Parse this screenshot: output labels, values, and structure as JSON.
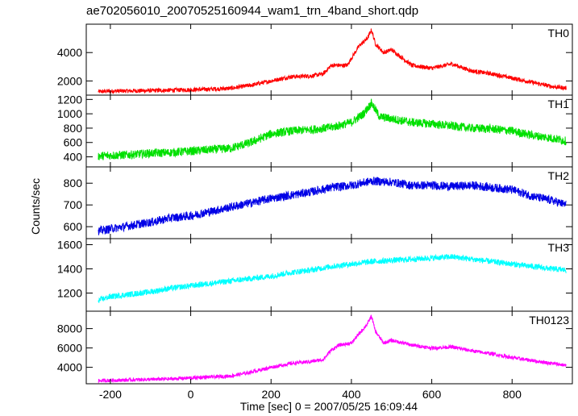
{
  "figure": {
    "title": "ae702056010_20070525160944_wam1_trn_4band_short.qdp",
    "xlabel": "Time [sec] 0 = 2007/05/25 16:09:44",
    "ylabel": "Counts/sec"
  },
  "chart_data": [
    {
      "type": "line",
      "name": "TH0",
      "color": "#ff0000",
      "xlim": [
        -260,
        950
      ],
      "ylim": [
        1000,
        6000
      ],
      "yticks": [
        2000,
        4000
      ],
      "x": [
        -230,
        -200,
        -150,
        -100,
        -50,
        0,
        50,
        100,
        150,
        200,
        250,
        300,
        330,
        350,
        370,
        390,
        400,
        420,
        440,
        450,
        460,
        480,
        500,
        550,
        600,
        650,
        700,
        750,
        800,
        850,
        900,
        935
      ],
      "y": [
        1250,
        1280,
        1300,
        1320,
        1350,
        1380,
        1420,
        1480,
        1700,
        2000,
        2300,
        2350,
        2500,
        3100,
        3100,
        3100,
        3600,
        4500,
        5000,
        5600,
        4600,
        4000,
        4200,
        3100,
        2900,
        3200,
        2700,
        2500,
        2200,
        1900,
        1600,
        1500
      ]
    },
    {
      "type": "line",
      "name": "TH1",
      "color": "#00e000",
      "xlim": [
        -260,
        950
      ],
      "ylim": [
        260,
        1260
      ],
      "yticks": [
        400,
        600,
        800,
        1000,
        1200
      ],
      "x": [
        -230,
        -200,
        -150,
        -100,
        -50,
        0,
        50,
        100,
        150,
        200,
        250,
        300,
        350,
        400,
        430,
        450,
        470,
        500,
        550,
        600,
        650,
        700,
        750,
        800,
        850,
        900,
        935
      ],
      "y": [
        410,
        420,
        430,
        450,
        460,
        480,
        500,
        520,
        600,
        720,
        760,
        780,
        810,
        880,
        1000,
        1150,
        960,
        930,
        880,
        860,
        830,
        800,
        790,
        760,
        700,
        660,
        620
      ]
    },
    {
      "type": "line",
      "name": "TH2",
      "color": "#0000e6",
      "xlim": [
        -260,
        950
      ],
      "ylim": [
        545,
        875
      ],
      "yticks": [
        600,
        700,
        800
      ],
      "x": [
        -230,
        -200,
        -150,
        -100,
        -50,
        0,
        50,
        100,
        150,
        200,
        250,
        300,
        350,
        400,
        450,
        500,
        550,
        600,
        650,
        700,
        750,
        800,
        850,
        900,
        935
      ],
      "y": [
        580,
        590,
        605,
        620,
        640,
        650,
        670,
        690,
        710,
        730,
        745,
        760,
        780,
        790,
        810,
        805,
        790,
        790,
        785,
        790,
        780,
        770,
        740,
        720,
        700
      ]
    },
    {
      "type": "line",
      "name": "TH3",
      "color": "#00ffff",
      "xlim": [
        -260,
        950
      ],
      "ylim": [
        1050,
        1650
      ],
      "yticks": [
        1200,
        1400,
        1600
      ],
      "x": [
        -230,
        -200,
        -150,
        -100,
        -50,
        0,
        50,
        100,
        150,
        200,
        250,
        300,
        350,
        400,
        450,
        500,
        550,
        600,
        650,
        700,
        750,
        800,
        850,
        900,
        935
      ],
      "y": [
        1140,
        1170,
        1190,
        1210,
        1240,
        1260,
        1280,
        1300,
        1320,
        1340,
        1370,
        1390,
        1420,
        1440,
        1460,
        1470,
        1480,
        1490,
        1500,
        1480,
        1460,
        1440,
        1420,
        1400,
        1390
      ]
    },
    {
      "type": "line",
      "name": "TH0123",
      "color": "#ff00ff",
      "xlim": [
        -260,
        950
      ],
      "ylim": [
        2300,
        9800
      ],
      "yticks": [
        4000,
        6000,
        8000
      ],
      "x": [
        -230,
        -200,
        -150,
        -100,
        -50,
        0,
        50,
        100,
        150,
        200,
        250,
        300,
        330,
        350,
        370,
        400,
        420,
        440,
        450,
        460,
        480,
        500,
        550,
        600,
        650,
        700,
        750,
        800,
        850,
        900,
        935
      ],
      "y": [
        2600,
        2650,
        2700,
        2750,
        2800,
        2900,
        3000,
        3100,
        3500,
        4000,
        4400,
        4600,
        4800,
        5800,
        6300,
        6500,
        7500,
        8500,
        9300,
        7700,
        6500,
        6800,
        6300,
        6000,
        6100,
        5700,
        5400,
        5000,
        4700,
        4400,
        4200
      ]
    }
  ],
  "xticks": [
    -200,
    0,
    200,
    400,
    600,
    800
  ]
}
